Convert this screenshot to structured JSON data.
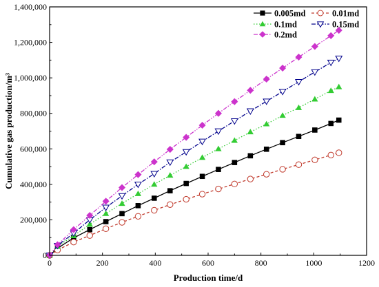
{
  "chart_data": {
    "type": "line",
    "x": [
      0,
      30,
      91,
      152,
      213,
      274,
      335,
      396,
      456,
      517,
      578,
      639,
      700,
      760,
      821,
      882,
      943,
      1004,
      1065,
      1095
    ],
    "series": [
      {
        "name": "0.005md",
        "color": "#000000",
        "marker": "square",
        "line": "solid",
        "values": [
          0,
          40000,
          98000,
          145000,
          190000,
          235000,
          280000,
          322000,
          364000,
          405000,
          445000,
          484000,
          523000,
          561000,
          598000,
          635000,
          670000,
          706000,
          743000,
          762000
        ]
      },
      {
        "name": "0.01md",
        "color": "#c0392b",
        "marker": "circle-open",
        "line": "dash",
        "values": [
          0,
          30000,
          75000,
          112000,
          150000,
          186000,
          220000,
          254000,
          286000,
          316000,
          345000,
          374000,
          402000,
          430000,
          457000,
          485000,
          511000,
          538000,
          565000,
          578000
        ]
      },
      {
        "name": "0.1md",
        "color": "#33cc33",
        "marker": "triangle-up",
        "line": "dot",
        "values": [
          0,
          50000,
          110000,
          175000,
          235000,
          292000,
          347000,
          400000,
          451000,
          500000,
          551000,
          600000,
          647000,
          695000,
          740000,
          788000,
          832000,
          880000,
          928000,
          949000
        ]
      },
      {
        "name": "0.15md",
        "color": "#00008b",
        "marker": "triangle-down-open",
        "line": "dashdot",
        "values": [
          0,
          55000,
          125000,
          200000,
          270000,
          335000,
          400000,
          460000,
          525000,
          583000,
          642000,
          700000,
          757000,
          813000,
          868000,
          923000,
          978000,
          1033000,
          1087000,
          1110000
        ]
      },
      {
        "name": "0.2md",
        "color": "#cc33cc",
        "marker": "diamond",
        "line": "dashdotdot",
        "values": [
          0,
          60000,
          145000,
          225000,
          305000,
          382000,
          455000,
          527000,
          597000,
          665000,
          733000,
          800000,
          866000,
          930000,
          993000,
          1055000,
          1117000,
          1177000,
          1238000,
          1268000
        ]
      }
    ],
    "xlabel": "Production time/d",
    "ylabel": "Cumulative gas production/m³",
    "xlim": [
      0,
      1200
    ],
    "ylim": [
      0,
      1400000
    ],
    "xticks": [
      0,
      200,
      400,
      600,
      800,
      1000,
      1200
    ],
    "yticks": [
      0,
      200000,
      400000,
      600000,
      800000,
      1000000,
      1200000,
      1400000
    ],
    "xtick_labels": [
      "0",
      "200",
      "400",
      "600",
      "800",
      "1000",
      "1200"
    ],
    "ytick_labels": [
      "0",
      "200,000",
      "400,000",
      "600,000",
      "800,000",
      "1,000,000",
      "1,200,000",
      "1,400,000"
    ],
    "grid": false,
    "legend_position": "top-right"
  }
}
